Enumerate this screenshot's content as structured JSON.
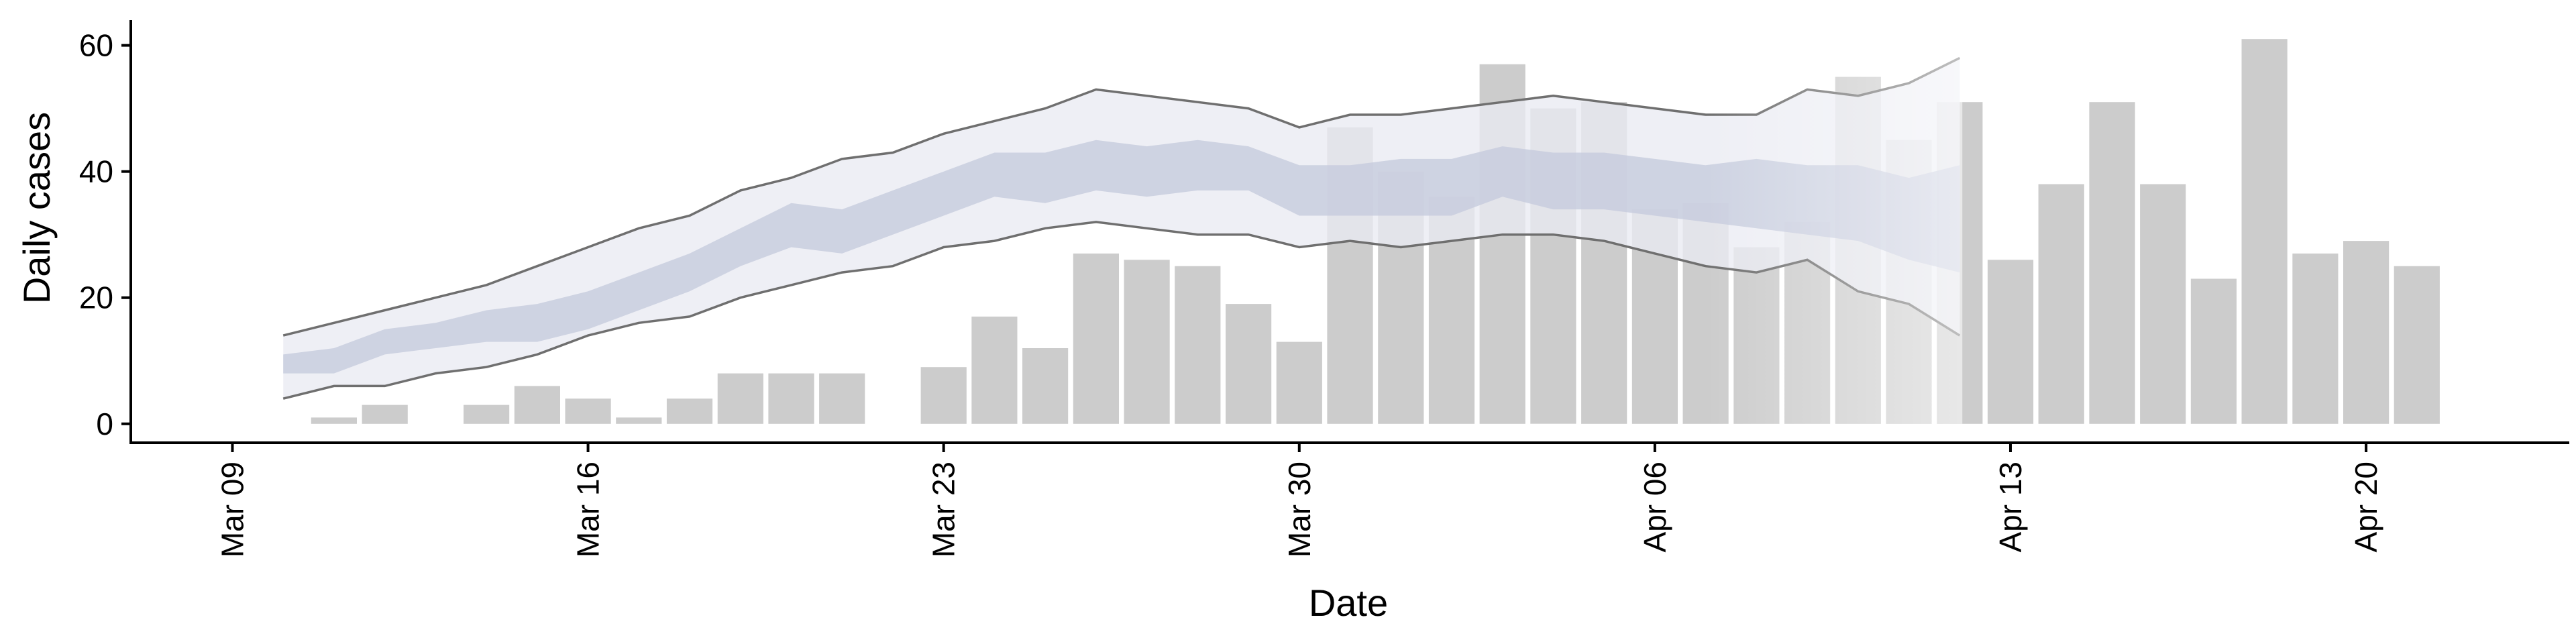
{
  "chart_data": {
    "type": "bar",
    "xlabel": "Date",
    "ylabel": "Daily cases",
    "ylim": [
      -3,
      64
    ],
    "yticks": [
      0,
      20,
      40,
      60
    ],
    "xrange": [
      "2020-03-07",
      "2020-04-24"
    ],
    "xticks": [
      {
        "date": "2020-03-09",
        "label": "Mar 09"
      },
      {
        "date": "2020-03-16",
        "label": "Mar 16"
      },
      {
        "date": "2020-03-23",
        "label": "Mar 23"
      },
      {
        "date": "2020-03-30",
        "label": "Mar 30"
      },
      {
        "date": "2020-04-06",
        "label": "Apr 06"
      },
      {
        "date": "2020-04-13",
        "label": "Apr 13"
      },
      {
        "date": "2020-04-20",
        "label": "Apr 20"
      }
    ],
    "grid": false,
    "colors": {
      "bars": "#cccccc",
      "band_outer": "#e9ebf2",
      "band_inner": "#c5cbdd",
      "bound_line": "#6f6f6f",
      "axis": "#000000"
    },
    "bars": [
      {
        "date": "2020-03-11",
        "value": 1
      },
      {
        "date": "2020-03-12",
        "value": 3
      },
      {
        "date": "2020-03-14",
        "value": 3
      },
      {
        "date": "2020-03-15",
        "value": 6
      },
      {
        "date": "2020-03-16",
        "value": 4
      },
      {
        "date": "2020-03-17",
        "value": 1
      },
      {
        "date": "2020-03-18",
        "value": 4
      },
      {
        "date": "2020-03-19",
        "value": 8
      },
      {
        "date": "2020-03-20",
        "value": 8
      },
      {
        "date": "2020-03-21",
        "value": 8
      },
      {
        "date": "2020-03-23",
        "value": 9
      },
      {
        "date": "2020-03-24",
        "value": 17
      },
      {
        "date": "2020-03-25",
        "value": 12
      },
      {
        "date": "2020-03-26",
        "value": 27
      },
      {
        "date": "2020-03-27",
        "value": 26
      },
      {
        "date": "2020-03-28",
        "value": 25
      },
      {
        "date": "2020-03-29",
        "value": 19
      },
      {
        "date": "2020-03-30",
        "value": 13
      },
      {
        "date": "2020-03-31",
        "value": 47
      },
      {
        "date": "2020-04-01",
        "value": 40
      },
      {
        "date": "2020-04-02",
        "value": 36
      },
      {
        "date": "2020-04-03",
        "value": 57
      },
      {
        "date": "2020-04-04",
        "value": 50
      },
      {
        "date": "2020-04-05",
        "value": 51
      },
      {
        "date": "2020-04-06",
        "value": 34
      },
      {
        "date": "2020-04-07",
        "value": 35
      },
      {
        "date": "2020-04-08",
        "value": 28
      },
      {
        "date": "2020-04-09",
        "value": 32
      },
      {
        "date": "2020-04-10",
        "value": 55
      },
      {
        "date": "2020-04-11",
        "value": 45
      },
      {
        "date": "2020-04-12",
        "value": 51
      },
      {
        "date": "2020-04-13",
        "value": 26
      },
      {
        "date": "2020-04-14",
        "value": 38
      },
      {
        "date": "2020-04-15",
        "value": 51
      },
      {
        "date": "2020-04-16",
        "value": 38
      },
      {
        "date": "2020-04-17",
        "value": 23
      },
      {
        "date": "2020-04-18",
        "value": 61
      },
      {
        "date": "2020-04-19",
        "value": 27
      },
      {
        "date": "2020-04-20",
        "value": 29
      },
      {
        "date": "2020-04-21",
        "value": 25
      }
    ],
    "estimate_band": {
      "dates": [
        "2020-03-10",
        "2020-03-11",
        "2020-03-12",
        "2020-03-13",
        "2020-03-14",
        "2020-03-15",
        "2020-03-16",
        "2020-03-17",
        "2020-03-18",
        "2020-03-19",
        "2020-03-20",
        "2020-03-21",
        "2020-03-22",
        "2020-03-23",
        "2020-03-24",
        "2020-03-25",
        "2020-03-26",
        "2020-03-27",
        "2020-03-28",
        "2020-03-29",
        "2020-03-30",
        "2020-03-31",
        "2020-04-01",
        "2020-04-02",
        "2020-04-03",
        "2020-04-04",
        "2020-04-05",
        "2020-04-06",
        "2020-04-07",
        "2020-04-08",
        "2020-04-09",
        "2020-04-10",
        "2020-04-11",
        "2020-04-12"
      ],
      "outer_upper": [
        14,
        16,
        18,
        20,
        22,
        25,
        28,
        31,
        33,
        37,
        39,
        42,
        43,
        46,
        48,
        50,
        53,
        52,
        51,
        50,
        47,
        49,
        49,
        50,
        51,
        52,
        51,
        50,
        49,
        49,
        53,
        52,
        54,
        58
      ],
      "outer_lower": [
        4,
        6,
        6,
        8,
        9,
        11,
        14,
        16,
        17,
        20,
        22,
        24,
        25,
        28,
        29,
        31,
        32,
        31,
        30,
        30,
        28,
        29,
        28,
        29,
        30,
        30,
        29,
        27,
        25,
        24,
        26,
        21,
        19,
        14
      ],
      "inner_upper": [
        11,
        12,
        15,
        16,
        18,
        19,
        21,
        24,
        27,
        31,
        35,
        34,
        37,
        40,
        43,
        43,
        45,
        44,
        45,
        44,
        41,
        41,
        42,
        42,
        44,
        43,
        43,
        42,
        41,
        42,
        41,
        41,
        39,
        41
      ],
      "inner_lower": [
        8,
        8,
        11,
        12,
        13,
        13,
        15,
        18,
        21,
        25,
        28,
        27,
        30,
        33,
        36,
        35,
        37,
        36,
        37,
        37,
        33,
        33,
        33,
        33,
        36,
        34,
        34,
        33,
        32,
        31,
        30,
        29,
        26,
        24
      ],
      "fade_after_index": 28
    }
  }
}
